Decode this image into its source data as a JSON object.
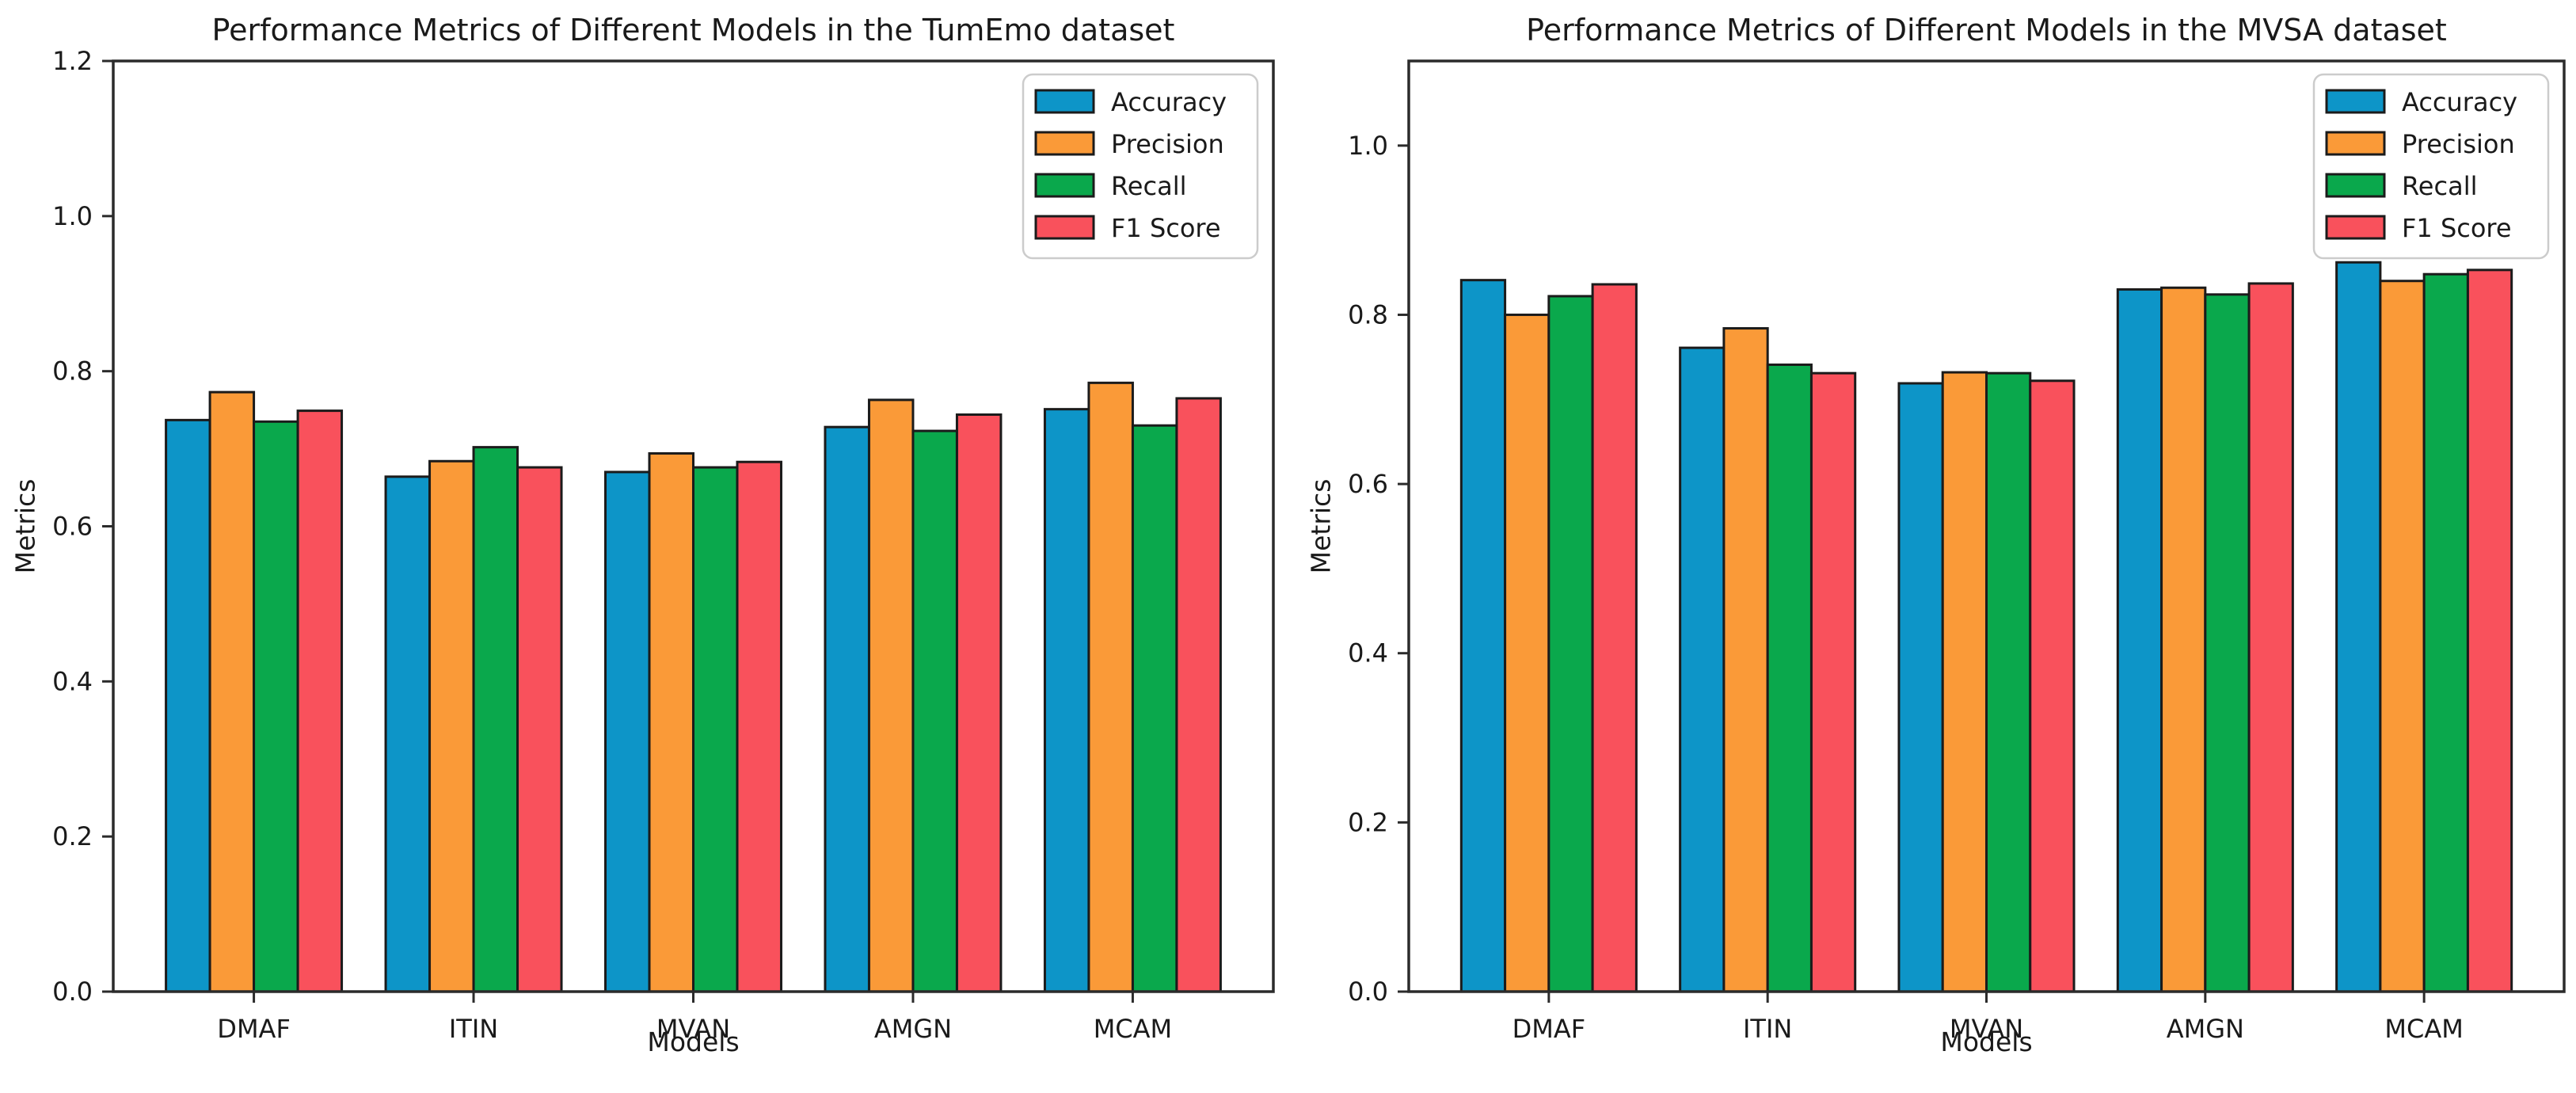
{
  "figure": {
    "background": "#ffffff"
  },
  "palette": {
    "series_colors": [
      "#0d95c8",
      "#fa9a38",
      "#0aa84c",
      "#f9515c"
    ],
    "bar_edge": "#1b1b1b",
    "axis": "#2b2b2b",
    "text": "#1a1a1a",
    "legend_border": "#cccccc",
    "legend_bg": "#ffffff"
  },
  "chart_data": [
    {
      "type": "bar",
      "title": "Performance Metrics of Different Models in the TumEmo dataset",
      "xlabel": "Models",
      "ylabel": "Metrics",
      "categories": [
        "DMAF",
        "ITIN",
        "MVAN",
        "AMGN",
        "MCAM"
      ],
      "series": [
        {
          "name": "Accuracy",
          "values": [
            0.737,
            0.664,
            0.67,
            0.728,
            0.751
          ]
        },
        {
          "name": "Precision",
          "values": [
            0.773,
            0.684,
            0.694,
            0.763,
            0.785
          ]
        },
        {
          "name": "Recall",
          "values": [
            0.735,
            0.702,
            0.676,
            0.723,
            0.73
          ]
        },
        {
          "name": "F1 Score",
          "values": [
            0.749,
            0.676,
            0.683,
            0.744,
            0.765
          ]
        }
      ],
      "ylim": [
        0,
        1.2
      ],
      "yticks": [
        "0.0",
        "0.2",
        "0.4",
        "0.6",
        "0.8",
        "1.0",
        "1.2"
      ],
      "legend_position": "upper right",
      "grid": false
    },
    {
      "type": "bar",
      "title": "Performance Metrics of Different Models in the MVSA dataset",
      "xlabel": "Models",
      "ylabel": "Metrics",
      "categories": [
        "DMAF",
        "ITIN",
        "MVAN",
        "AMGN",
        "MCAM"
      ],
      "series": [
        {
          "name": "Accuracy",
          "values": [
            0.841,
            0.761,
            0.719,
            0.83,
            0.862
          ]
        },
        {
          "name": "Precision",
          "values": [
            0.8,
            0.784,
            0.732,
            0.832,
            0.84
          ]
        },
        {
          "name": "Recall",
          "values": [
            0.822,
            0.741,
            0.731,
            0.824,
            0.848
          ]
        },
        {
          "name": "F1 Score",
          "values": [
            0.836,
            0.731,
            0.722,
            0.837,
            0.853
          ]
        }
      ],
      "ylim": [
        0,
        1.1
      ],
      "yticks": [
        "0.0",
        "0.2",
        "0.4",
        "0.6",
        "0.8",
        "1.0"
      ],
      "legend_position": "upper right",
      "grid": false
    }
  ]
}
